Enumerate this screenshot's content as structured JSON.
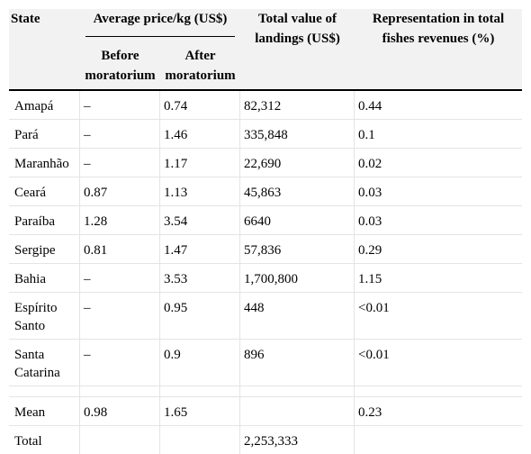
{
  "header": {
    "state": "State",
    "avg_price": "Average price/kg (US$)",
    "before": "Before moratorium",
    "after": "After moratorium",
    "total_value": "Total value of landings (US$)",
    "representation": "Representation in total fishes revenues (%)"
  },
  "rows": [
    {
      "state": "Amapá",
      "before": "–",
      "after": "0.74",
      "total": "82,312",
      "rep": "0.44"
    },
    {
      "state": "Pará",
      "before": "–",
      "after": "1.46",
      "total": "335,848",
      "rep": "0.1"
    },
    {
      "state": "Maranhão",
      "before": "–",
      "after": "1.17",
      "total": "22,690",
      "rep": "0.02"
    },
    {
      "state": "Ceará",
      "before": "0.87",
      "after": "1.13",
      "total": "45,863",
      "rep": "0.03"
    },
    {
      "state": "Paraíba",
      "before": "1.28",
      "after": "3.54",
      "total": "6640",
      "rep": "0.03"
    },
    {
      "state": "Sergipe",
      "before": "0.81",
      "after": "1.47",
      "total": "57,836",
      "rep": "0.29"
    },
    {
      "state": "Bahia",
      "before": "–",
      "after": "3.53",
      "total": "1,700,800",
      "rep": "1.15"
    },
    {
      "state": "Espírito Santo",
      "before": "–",
      "after": "0.95",
      "total": "448",
      "rep": "<0.01"
    },
    {
      "state": "Santa Catarina",
      "before": "–",
      "after": "0.9",
      "total": "896",
      "rep": "<0.01"
    }
  ],
  "summary": [
    {
      "state": "Mean",
      "before": "0.98",
      "after": "1.65",
      "total": "",
      "rep": "0.23"
    },
    {
      "state": "Total",
      "before": "",
      "after": "",
      "total": "2,253,333",
      "rep": ""
    }
  ]
}
